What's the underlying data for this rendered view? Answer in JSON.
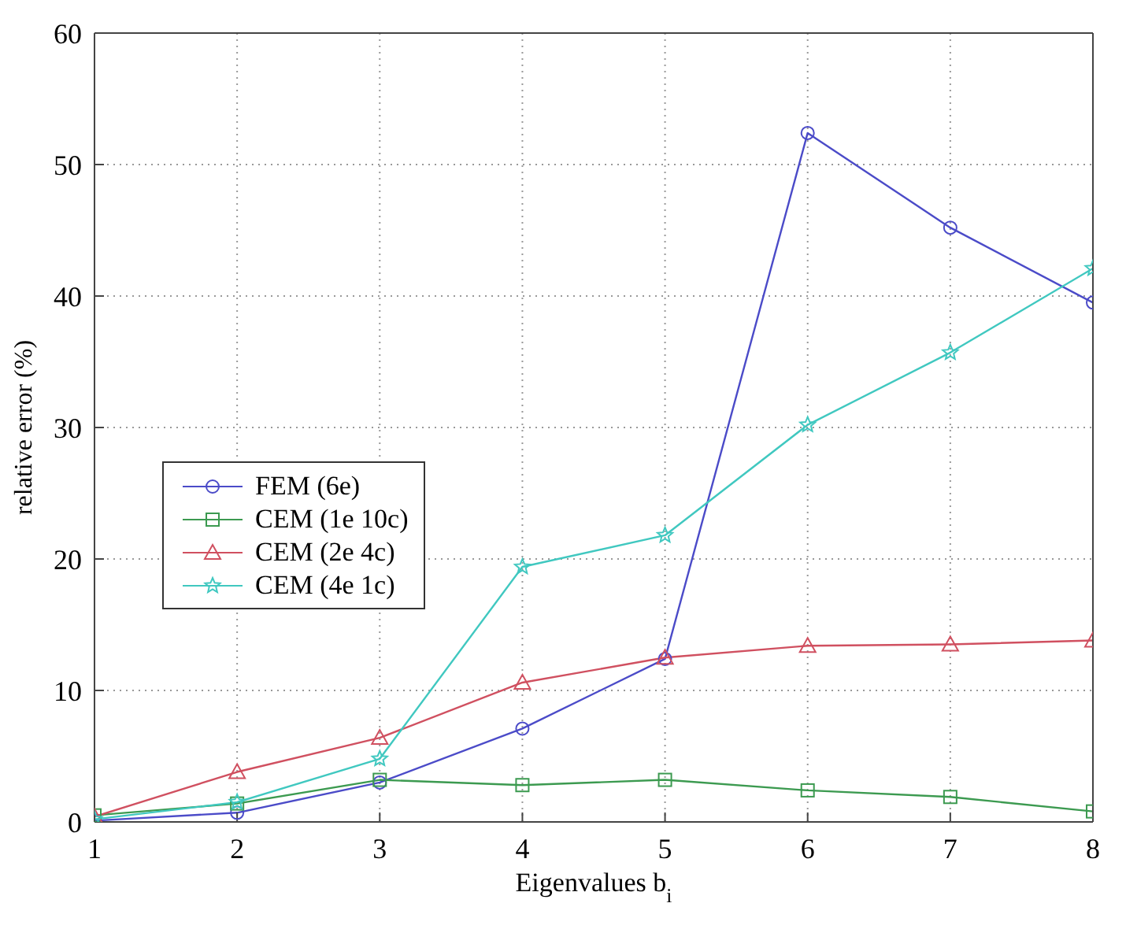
{
  "chart_data": {
    "type": "line",
    "xlabel": "Eigenvalues b$_{i}$",
    "ylabel": "relative error (%)",
    "x": [
      1,
      2,
      3,
      4,
      5,
      6,
      7,
      8
    ],
    "xlim": [
      1,
      8
    ],
    "xticks": [
      1,
      2,
      3,
      4,
      5,
      6,
      7,
      8
    ],
    "ylim": [
      0,
      60
    ],
    "yticks": [
      0,
      10,
      20,
      30,
      40,
      50,
      60
    ],
    "grid": true,
    "legend": "left",
    "line_style": "solid",
    "series": [
      {
        "name": "FEM (6e)",
        "color": "#4b4bc8",
        "marker": "circle",
        "values": [
          0.1,
          0.7,
          3.0,
          7.1,
          12.4,
          52.4,
          45.2,
          39.5
        ]
      },
      {
        "name": "CEM (1e 10c)",
        "color": "#3c9a50",
        "marker": "square",
        "values": [
          0.5,
          1.4,
          3.2,
          2.8,
          3.2,
          2.4,
          1.9,
          0.8
        ]
      },
      {
        "name": "CEM (2e 4c)",
        "color": "#d05060",
        "marker": "triangle",
        "values": [
          0.4,
          3.8,
          6.4,
          10.6,
          12.5,
          13.4,
          13.5,
          13.8
        ]
      },
      {
        "name": "CEM (4e 1c)",
        "color": "#40c8c0",
        "marker": "star",
        "values": [
          0.2,
          1.5,
          4.8,
          19.4,
          21.8,
          30.2,
          35.7,
          42.1
        ]
      }
    ]
  }
}
